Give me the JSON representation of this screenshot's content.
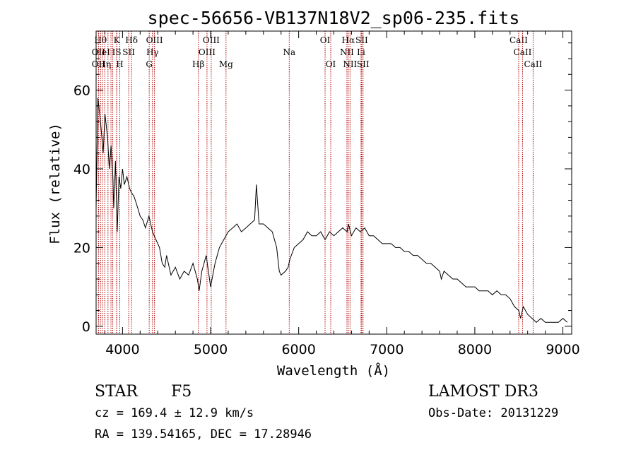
{
  "chart_data": {
    "type": "line",
    "title": "spec-56656-VB137N18V2_sp06-235.fits",
    "xlabel": "Wavelength (Å)",
    "ylabel": "Flux (relative)",
    "xlim": [
      3700,
      9100
    ],
    "ylim": [
      -2,
      75
    ],
    "xticks": [
      4000,
      5000,
      6000,
      7000,
      8000,
      9000
    ],
    "xtick_labels": [
      "4000",
      "5000",
      "6000",
      "7000",
      "8000",
      "9000"
    ],
    "yticks": [
      0,
      20,
      40,
      60
    ],
    "ytick_labels": [
      "0",
      "20",
      "40",
      "60"
    ],
    "grid": false,
    "line_color": "#000000",
    "marker_color": "#b00000",
    "series": [
      {
        "x": [
          3700,
          3720,
          3750,
          3780,
          3800,
          3830,
          3850,
          3870,
          3890,
          3900,
          3920,
          3940,
          3960,
          3980,
          4000,
          4020,
          4050,
          4080,
          4100,
          4130,
          4160,
          4200,
          4230,
          4260,
          4300,
          4340,
          4380,
          4420,
          4450,
          4480,
          4500,
          4550,
          4600,
          4650,
          4700,
          4750,
          4800,
          4850,
          4870,
          4900,
          4950,
          5000,
          5050,
          5100,
          5150,
          5200,
          5250,
          5300,
          5350,
          5400,
          5450,
          5500,
          5520,
          5550,
          5600,
          5650,
          5700,
          5750,
          5780,
          5800,
          5850,
          5880,
          5900,
          5950,
          6000,
          6050,
          6100,
          6150,
          6200,
          6250,
          6300,
          6350,
          6400,
          6450,
          6500,
          6550,
          6565,
          6600,
          6650,
          6700,
          6750,
          6800,
          6850,
          6900,
          6950,
          7000,
          7050,
          7100,
          7150,
          7200,
          7250,
          7300,
          7350,
          7400,
          7450,
          7500,
          7550,
          7600,
          7620,
          7650,
          7700,
          7750,
          7800,
          7850,
          7900,
          7950,
          8000,
          8050,
          8100,
          8150,
          8200,
          8250,
          8300,
          8350,
          8400,
          8450,
          8500,
          8520,
          8550,
          8600,
          8650,
          8700,
          8750,
          8800,
          8850,
          8900,
          8950,
          9000,
          9050
        ],
        "y": [
          30,
          58,
          52,
          44,
          54,
          48,
          40,
          46,
          38,
          30,
          42,
          24,
          38,
          35,
          40,
          36,
          38,
          35,
          34,
          33,
          31,
          28,
          27,
          25,
          28,
          24,
          22,
          20,
          16,
          15,
          18,
          13,
          15,
          12,
          14,
          13,
          16,
          12,
          9,
          14,
          18,
          10,
          16,
          20,
          22,
          24,
          25,
          26,
          24,
          25,
          26,
          27,
          36,
          26,
          26,
          25,
          24,
          20,
          14,
          13,
          14,
          15,
          17,
          20,
          21,
          22,
          24,
          23,
          23,
          24,
          22,
          24,
          23,
          24,
          25,
          24,
          26,
          23,
          25,
          24,
          25,
          23,
          23,
          22,
          21,
          21,
          21,
          20,
          20,
          19,
          19,
          18,
          18,
          17,
          16,
          16,
          15,
          14,
          12,
          14,
          13,
          12,
          12,
          11,
          10,
          10,
          10,
          9,
          9,
          9,
          8,
          9,
          8,
          8,
          7,
          5,
          4,
          2,
          5,
          3,
          2,
          1,
          2,
          1,
          1,
          1,
          1,
          2,
          1
        ]
      }
    ],
    "line_markers": [
      {
        "wl": 3727,
        "label": "OII",
        "row": 2
      },
      {
        "wl": 3727,
        "label": "OII",
        "row": 3
      },
      {
        "wl": 3750,
        "label": "Hθ",
        "row": 1
      },
      {
        "wl": 3771,
        "label": "HeI",
        "row": 2
      },
      {
        "wl": 3798,
        "label": "Hη",
        "row": 3
      },
      {
        "wl": 3835,
        "label": "",
        "row": 0
      },
      {
        "wl": 3869,
        "label": "",
        "row": 0
      },
      {
        "wl": 3889,
        "label": "",
        "row": 0
      },
      {
        "wl": 3934,
        "label": "K",
        "row": 1
      },
      {
        "wl": 3934,
        "label": "IS",
        "row": 2
      },
      {
        "wl": 3969,
        "label": "H",
        "row": 3
      },
      {
        "wl": 4070,
        "label": "SII",
        "row": 2
      },
      {
        "wl": 4102,
        "label": "Hδ",
        "row": 1
      },
      {
        "wl": 4303,
        "label": "G",
        "row": 3
      },
      {
        "wl": 4340,
        "label": "Hγ",
        "row": 2
      },
      {
        "wl": 4363,
        "label": "OIII",
        "row": 1
      },
      {
        "wl": 4861,
        "label": "Hβ",
        "row": 3
      },
      {
        "wl": 4959,
        "label": "OIII",
        "row": 2
      },
      {
        "wl": 5007,
        "label": "OIII",
        "row": 1
      },
      {
        "wl": 5175,
        "label": "Mg",
        "row": 3
      },
      {
        "wl": 5893,
        "label": "Na",
        "row": 2
      },
      {
        "wl": 6300,
        "label": "OI",
        "row": 1
      },
      {
        "wl": 6364,
        "label": "OI",
        "row": 3
      },
      {
        "wl": 6548,
        "label": "NII",
        "row": 2
      },
      {
        "wl": 6563,
        "label": "Hα",
        "row": 1
      },
      {
        "wl": 6583,
        "label": "NII",
        "row": 3
      },
      {
        "wl": 6708,
        "label": "Li",
        "row": 2
      },
      {
        "wl": 6716,
        "label": "SII",
        "row": 1
      },
      {
        "wl": 6731,
        "label": "SII",
        "row": 3
      },
      {
        "wl": 8498,
        "label": "CaII",
        "row": 1
      },
      {
        "wl": 8542,
        "label": "CaII",
        "row": 2
      },
      {
        "wl": 8662,
        "label": "CaII",
        "row": 3
      }
    ]
  },
  "info": {
    "class": "STAR",
    "subclass": "F5",
    "survey": "LAMOST DR3",
    "cz": "cz = 169.4 ± 12.9 km/s",
    "obs_date": "Obs-Date: 20131229",
    "radec": "RA = 139.54165, DEC =  17.28946"
  }
}
